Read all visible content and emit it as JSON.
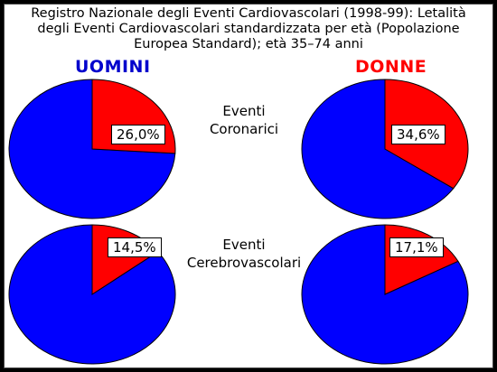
{
  "title": "Registro Nazionale degli Eventi Cardiovascolari (1998-99): Letalità\ndegli Eventi Cardiovascolari standardizzata per età (Popolazione\nEuropea Standard); età 35–74 anni",
  "labels": {
    "men": "UOMINI",
    "women": "DONNE",
    "coronary": "Eventi\nCoronarici",
    "cerebro": "Eventi\nCerebrovascolari"
  },
  "colors": {
    "men": "#0000cc",
    "women": "#ff0000",
    "fatal": "#ff0000",
    "other": "#0000ff"
  },
  "chart_data": [
    {
      "type": "pie",
      "values": [
        26.0
      ],
      "label": "26,0%"
    },
    {
      "type": "pie",
      "values": [
        34.6
      ],
      "label": "34,6%"
    },
    {
      "type": "pie",
      "values": [
        14.5
      ],
      "label": "14,5%"
    },
    {
      "type": "pie",
      "values": [
        17.1
      ],
      "label": "17,1%"
    }
  ]
}
